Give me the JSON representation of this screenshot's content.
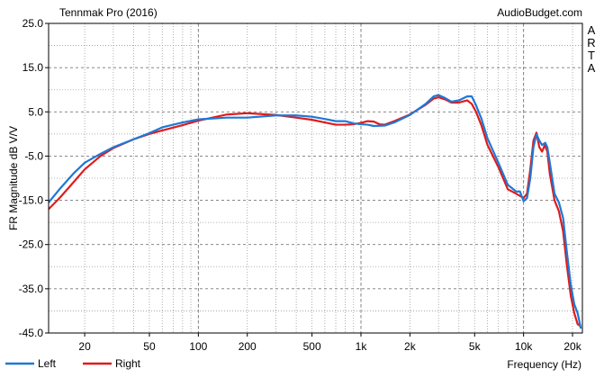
{
  "chart_data": {
    "type": "line",
    "title": "Tennmak Pro (2016)",
    "source_label": "AudioBudget.com",
    "side_label": [
      "A",
      "R",
      "T",
      "A"
    ],
    "xlabel": "Frequency (Hz)",
    "ylabel": "FR Magnitude dB V/V",
    "xscale": "log",
    "xlim": [
      12,
      23000
    ],
    "ylim": [
      -45,
      25
    ],
    "grid": true,
    "legend_position": "bottom-left",
    "x_ticks": [
      {
        "value": 20,
        "label": "20"
      },
      {
        "value": 50,
        "label": "50"
      },
      {
        "value": 100,
        "label": "100"
      },
      {
        "value": 200,
        "label": "200"
      },
      {
        "value": 500,
        "label": "500"
      },
      {
        "value": 1000,
        "label": "1k"
      },
      {
        "value": 2000,
        "label": "2k"
      },
      {
        "value": 5000,
        "label": "5k"
      },
      {
        "value": 10000,
        "label": "10k"
      },
      {
        "value": 20000,
        "label": "20k"
      }
    ],
    "y_ticks": [
      {
        "value": 25,
        "label": "25.0"
      },
      {
        "value": 15,
        "label": "15.0"
      },
      {
        "value": 5,
        "label": "5.0"
      },
      {
        "value": -5,
        "label": "-5.0"
      },
      {
        "value": -15,
        "label": "-15.0"
      },
      {
        "value": -25,
        "label": "-25.0"
      },
      {
        "value": -35,
        "label": "-35.0"
      },
      {
        "value": -45,
        "label": "-45.0"
      }
    ],
    "series": [
      {
        "name": "Left",
        "color": "#1f78d6",
        "points": [
          [
            12,
            -15.5
          ],
          [
            14,
            -12.5
          ],
          [
            17,
            -9
          ],
          [
            20,
            -6.5
          ],
          [
            25,
            -4.5
          ],
          [
            30,
            -3
          ],
          [
            40,
            -1.2
          ],
          [
            50,
            0.2
          ],
          [
            60,
            1.5
          ],
          [
            80,
            2.6
          ],
          [
            100,
            3.3
          ],
          [
            150,
            3.7
          ],
          [
            200,
            3.7
          ],
          [
            300,
            4.2
          ],
          [
            400,
            4.2
          ],
          [
            500,
            3.9
          ],
          [
            600,
            3.4
          ],
          [
            700,
            2.9
          ],
          [
            800,
            2.9
          ],
          [
            900,
            2.4
          ],
          [
            1000,
            2.2
          ],
          [
            1100,
            2.1
          ],
          [
            1200,
            1.8
          ],
          [
            1400,
            1.9
          ],
          [
            1600,
            2.6
          ],
          [
            2000,
            4.3
          ],
          [
            2500,
            6.8
          ],
          [
            2800,
            8.5
          ],
          [
            3000,
            8.8
          ],
          [
            3300,
            8.1
          ],
          [
            3600,
            7.3
          ],
          [
            4000,
            7.6
          ],
          [
            4500,
            8.5
          ],
          [
            4800,
            8.5
          ],
          [
            5100,
            6.5
          ],
          [
            5500,
            3.5
          ],
          [
            6000,
            -1
          ],
          [
            7000,
            -6.5
          ],
          [
            8000,
            -11.5
          ],
          [
            9000,
            -13
          ],
          [
            9500,
            -13
          ],
          [
            10000,
            -15.2
          ],
          [
            10500,
            -14.5
          ],
          [
            11000,
            -10
          ],
          [
            11500,
            -3
          ],
          [
            12000,
            0
          ],
          [
            12500,
            -1.5
          ],
          [
            13000,
            -2.5
          ],
          [
            13600,
            -2
          ],
          [
            14000,
            -3
          ],
          [
            14500,
            -6.5
          ],
          [
            15500,
            -13.5
          ],
          [
            16500,
            -15.5
          ],
          [
            17500,
            -19
          ],
          [
            18500,
            -27
          ],
          [
            19500,
            -34
          ],
          [
            20500,
            -38.5
          ],
          [
            21500,
            -40.5
          ],
          [
            22500,
            -44
          ]
        ]
      },
      {
        "name": "Right",
        "color": "#e01b1b",
        "points": [
          [
            12,
            -17
          ],
          [
            14,
            -14.5
          ],
          [
            17,
            -11
          ],
          [
            20,
            -8
          ],
          [
            25,
            -5
          ],
          [
            30,
            -3.2
          ],
          [
            40,
            -1.2
          ],
          [
            50,
            0
          ],
          [
            60,
            0.8
          ],
          [
            80,
            2
          ],
          [
            100,
            3
          ],
          [
            150,
            4.4
          ],
          [
            200,
            4.7
          ],
          [
            300,
            4.3
          ],
          [
            400,
            3.7
          ],
          [
            500,
            3.2
          ],
          [
            600,
            2.6
          ],
          [
            700,
            2.1
          ],
          [
            800,
            2.1
          ],
          [
            900,
            2.2
          ],
          [
            1000,
            2.5
          ],
          [
            1100,
            2.9
          ],
          [
            1200,
            2.8
          ],
          [
            1300,
            2.2
          ],
          [
            1400,
            2.1
          ],
          [
            1600,
            2.9
          ],
          [
            2000,
            4.4
          ],
          [
            2500,
            6.6
          ],
          [
            2800,
            8
          ],
          [
            3000,
            8.3
          ],
          [
            3300,
            7.8
          ],
          [
            3600,
            7.1
          ],
          [
            4000,
            7.1
          ],
          [
            4500,
            7.6
          ],
          [
            4800,
            6.8
          ],
          [
            5100,
            5
          ],
          [
            5500,
            2
          ],
          [
            6000,
            -2.5
          ],
          [
            7000,
            -7.5
          ],
          [
            8000,
            -12.5
          ],
          [
            9000,
            -13.5
          ],
          [
            9500,
            -14
          ],
          [
            10000,
            -14.5
          ],
          [
            10500,
            -13.5
          ],
          [
            11000,
            -8
          ],
          [
            11500,
            -1.5
          ],
          [
            12000,
            0.3
          ],
          [
            12500,
            -3
          ],
          [
            13000,
            -4
          ],
          [
            13500,
            -2.5
          ],
          [
            14000,
            -4
          ],
          [
            14500,
            -9
          ],
          [
            15500,
            -15
          ],
          [
            16500,
            -17.5
          ],
          [
            17500,
            -22
          ],
          [
            18500,
            -30
          ],
          [
            19500,
            -36.5
          ],
          [
            20500,
            -40.5
          ],
          [
            21500,
            -43
          ],
          [
            22500,
            -43.5
          ]
        ]
      }
    ]
  }
}
